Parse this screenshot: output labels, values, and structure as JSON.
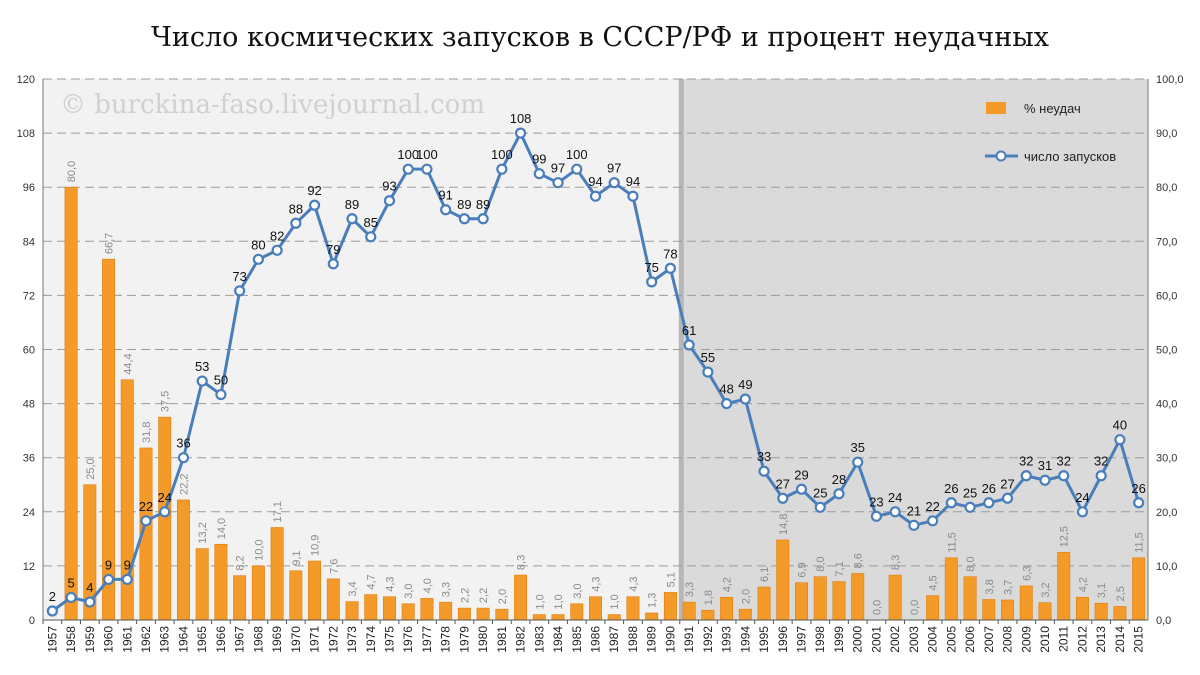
{
  "title": "Число космических запусков в СССР/РФ и процент неудачных",
  "watermark": "© burckina-faso.livejournal.com",
  "legend": {
    "bar_label": "% неудач",
    "line_label": "число запусков"
  },
  "colors": {
    "bar": "#F39A28",
    "bar_edge": "#E07F10",
    "line": "#4A7EBB",
    "marker_fill": "#ffffff",
    "bg_left": "#F2F2F2",
    "bg_right": "#DADADA",
    "grid": "#9C9C9C"
  },
  "chart_data": {
    "type": "bar",
    "categories": [
      "1957",
      "1958",
      "1959",
      "1960",
      "1961",
      "1962",
      "1963",
      "1964",
      "1965",
      "1966",
      "1967",
      "1968",
      "1969",
      "1970",
      "1971",
      "1972",
      "1973",
      "1974",
      "1975",
      "1976",
      "1977",
      "1978",
      "1979",
      "1980",
      "1981",
      "1982",
      "1983",
      "1984",
      "1985",
      "1986",
      "1987",
      "1988",
      "1989",
      "1990",
      "1991",
      "1992",
      "1993",
      "1994",
      "1995",
      "1996",
      "1997",
      "1998",
      "1999",
      "2000",
      "2001",
      "2002",
      "2003",
      "2004",
      "2005",
      "2006",
      "2007",
      "2008",
      "2009",
      "2010",
      "2011",
      "2012",
      "2013",
      "2014",
      "2015"
    ],
    "series": [
      {
        "name": "% неудач",
        "type": "bar",
        "axis": "right",
        "values": [
          0.0,
          80.0,
          25.0,
          66.7,
          44.4,
          31.8,
          37.5,
          22.2,
          13.2,
          14.0,
          8.2,
          10.0,
          17.1,
          9.1,
          10.9,
          7.6,
          3.4,
          4.7,
          4.3,
          3.0,
          4.0,
          3.3,
          2.2,
          2.2,
          2.0,
          8.3,
          1.0,
          1.0,
          3.0,
          4.3,
          1.0,
          4.3,
          1.3,
          5.1,
          3.3,
          1.8,
          4.2,
          2.0,
          6.1,
          14.8,
          6.9,
          8.0,
          7.1,
          8.6,
          0.0,
          8.3,
          0.0,
          4.5,
          11.5,
          8.0,
          3.8,
          3.7,
          6.3,
          3.2,
          12.5,
          4.2,
          3.1,
          2.5,
          11.5
        ],
        "labels": [
          "",
          "80,0",
          "25,0",
          "66,7",
          "44,4",
          "31,8",
          "37,5",
          "22,2",
          "13,2",
          "14,0",
          "8,2",
          "10,0",
          "17,1",
          "9,1",
          "10,9",
          "7,6",
          "3,4",
          "4,7",
          "4,3",
          "3,0",
          "4,0",
          "3,3",
          "2,2",
          "2,2",
          "2,0",
          "8,3",
          "1,0",
          "1,0",
          "3,0",
          "4,3",
          "1,0",
          "4,3",
          "1,3",
          "5,1",
          "3,3",
          "1,8",
          "4,2",
          "2,0",
          "6,1",
          "14,8",
          "6,9",
          "8,0",
          "7,1",
          "8,6",
          "0,0",
          "8,3",
          "0,0",
          "4,5",
          "11,5",
          "8,0",
          "3,8",
          "3,7",
          "6,3",
          "3,2",
          "12,5",
          "4,2",
          "3,1",
          "2,5",
          "11,5"
        ]
      },
      {
        "name": "число запусков",
        "type": "line",
        "axis": "left",
        "values": [
          2,
          5,
          4,
          9,
          9,
          22,
          24,
          36,
          53,
          50,
          73,
          80,
          82,
          88,
          92,
          79,
          89,
          85,
          93,
          100,
          100,
          91,
          89,
          89,
          100,
          108,
          99,
          97,
          100,
          94,
          97,
          94,
          75,
          78,
          61,
          55,
          48,
          49,
          33,
          27,
          29,
          25,
          28,
          35,
          23,
          24,
          21,
          22,
          26,
          25,
          26,
          27,
          32,
          31,
          32,
          24,
          32,
          40,
          26
        ],
        "labels": [
          "2",
          "5",
          "4",
          "9",
          "9",
          "22",
          "24",
          "36",
          "53",
          "50",
          "73",
          "80",
          "82",
          "88",
          "92",
          "79",
          "89",
          "85",
          "93",
          "100",
          "100",
          "91",
          "89",
          "89",
          "100",
          "108",
          "99",
          "97",
          "100",
          "94",
          "97",
          "94",
          "75",
          "78",
          "61",
          "55",
          "48",
          "49",
          "33",
          "27",
          "29",
          "25",
          "28",
          "35",
          "23",
          "24",
          "21",
          "22",
          "26",
          "25",
          "26",
          "27",
          "32",
          "31",
          "32",
          "24",
          "32",
          "40",
          "26"
        ]
      }
    ],
    "ylim_left": [
      0,
      120
    ],
    "yticks_left": [
      "0",
      "12",
      "24",
      "36",
      "48",
      "60",
      "72",
      "84",
      "96",
      "108",
      "120"
    ],
    "ylim_right": [
      0,
      100
    ],
    "yticks_right": [
      "0,0",
      "10,0",
      "20,0",
      "30,0",
      "40,0",
      "50,0",
      "60,0",
      "70,0",
      "80,0",
      "90,0",
      "100,0"
    ],
    "grid": true,
    "legend_position": "top-right",
    "shaded_from_category": "1991"
  }
}
